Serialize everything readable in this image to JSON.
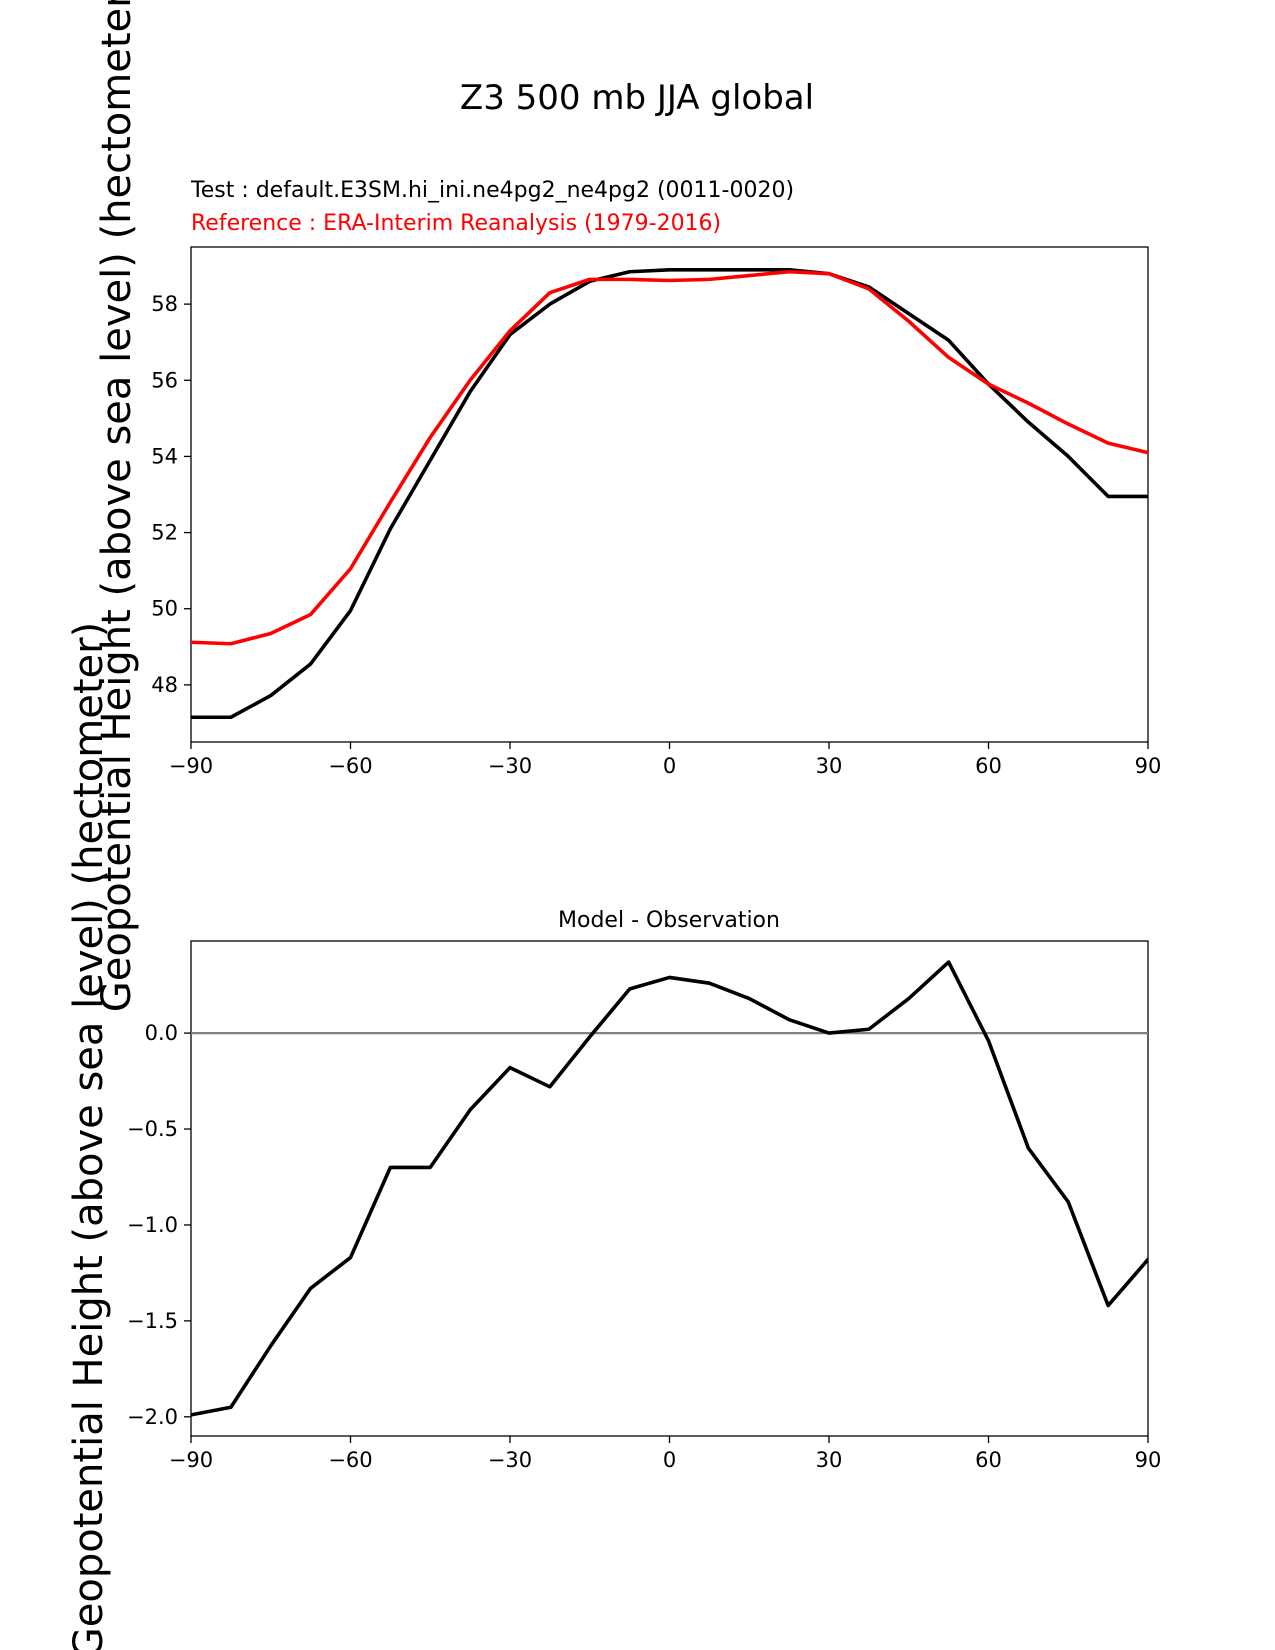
{
  "figure": {
    "title": "Z3 500 mb JJA global",
    "colors": {
      "test": "#000000",
      "reference": "#ff0000",
      "zero_line": "#808080"
    }
  },
  "chart_data": [
    {
      "type": "line",
      "title": "",
      "legend_text": [
        {
          "text": "Test : default.E3SM.hi_ini.ne4pg2_ne4pg2 (0011-0020)",
          "color": "#000000"
        },
        {
          "text": "Reference : ERA-Interim Reanalysis (1979-2016)",
          "color": "#ff0000"
        }
      ],
      "ylabel": "Geopotential Height (above sea level) (hectometer)",
      "xlim": [
        -90,
        90
      ],
      "ylim": [
        46.5,
        59.5
      ],
      "xticks": [
        -90,
        -60,
        -30,
        0,
        30,
        60,
        90
      ],
      "xtick_labels": [
        "−90",
        "−60",
        "−30",
        "0",
        "30",
        "60",
        "90"
      ],
      "yticks": [
        48,
        50,
        52,
        54,
        56,
        58
      ],
      "ytick_labels": [
        "48",
        "50",
        "52",
        "54",
        "56",
        "58"
      ],
      "grid": false,
      "series": [
        {
          "color": "#000000",
          "x": [
            -90,
            -82.5,
            -75,
            -67.5,
            -60,
            -52.5,
            -45,
            -37.5,
            -30,
            -22.5,
            -15,
            -7.5,
            0,
            7.5,
            15,
            22.5,
            30,
            37.5,
            45,
            52.5,
            60,
            67.5,
            75,
            82.5,
            90
          ],
          "y": [
            47.15,
            47.15,
            47.72,
            48.55,
            49.95,
            52.1,
            53.9,
            55.7,
            57.2,
            58.0,
            58.6,
            58.85,
            58.9,
            58.9,
            58.9,
            58.9,
            58.8,
            58.45,
            57.75,
            57.05,
            55.9,
            54.9,
            54.0,
            52.95,
            52.95
          ]
        },
        {
          "color": "#ff0000",
          "x": [
            -90,
            -82.5,
            -75,
            -67.5,
            -60,
            -52.5,
            -45,
            -37.5,
            -30,
            -22.5,
            -15,
            -7.5,
            0,
            7.5,
            15,
            22.5,
            30,
            37.5,
            45,
            52.5,
            60,
            67.5,
            75,
            82.5,
            90
          ],
          "y": [
            49.12,
            49.08,
            49.35,
            49.85,
            51.05,
            52.8,
            54.5,
            56.0,
            57.3,
            58.3,
            58.65,
            58.65,
            58.62,
            58.65,
            58.75,
            58.85,
            58.8,
            58.4,
            57.55,
            56.6,
            55.9,
            55.4,
            54.85,
            54.35,
            54.1
          ]
        }
      ]
    },
    {
      "type": "line",
      "title": "Model - Observation",
      "ylabel": "Geopotential Height (above sea level) (hectometer)",
      "xlim": [
        -90,
        90
      ],
      "ylim": [
        -2.1,
        0.48
      ],
      "xticks": [
        -90,
        -60,
        -30,
        0,
        30,
        60,
        90
      ],
      "xtick_labels": [
        "−90",
        "−60",
        "−30",
        "0",
        "30",
        "60",
        "90"
      ],
      "yticks": [
        -2.0,
        -1.5,
        -1.0,
        -0.5,
        0.0
      ],
      "ytick_labels": [
        "−2.0",
        "−1.5",
        "−1.0",
        "−0.5",
        "0.0"
      ],
      "grid": false,
      "reference_line": {
        "y": 0.0,
        "color": "#808080"
      },
      "series": [
        {
          "color": "#000000",
          "x": [
            -90,
            -82.5,
            -75,
            -67.5,
            -60,
            -52.5,
            -45,
            -37.5,
            -30,
            -22.5,
            -15,
            -7.5,
            0,
            7.5,
            15,
            22.5,
            30,
            37.5,
            45,
            52.5,
            60,
            67.5,
            75,
            82.5,
            90
          ],
          "y": [
            -1.99,
            -1.95,
            -1.63,
            -1.33,
            -1.17,
            -0.7,
            -0.7,
            -0.4,
            -0.18,
            -0.28,
            -0.02,
            0.23,
            0.29,
            0.26,
            0.18,
            0.07,
            0.0,
            0.02,
            0.18,
            0.37,
            -0.04,
            -0.6,
            -0.88,
            -1.42,
            -1.18
          ]
        }
      ]
    }
  ]
}
